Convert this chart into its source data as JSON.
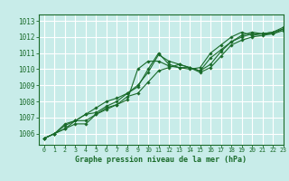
{
  "title": "Graphe pression niveau de la mer (hPa)",
  "background_color": "#c8ece9",
  "plot_bg_color": "#c8ece9",
  "grid_color": "#ffffff",
  "line_color": "#1a6b2a",
  "marker_color": "#1a6b2a",
  "tick_color": "#1a6b2a",
  "xlim": [
    -0.5,
    23
  ],
  "ylim": [
    1005.3,
    1013.4
  ],
  "xticks": [
    0,
    1,
    2,
    3,
    4,
    5,
    6,
    7,
    8,
    9,
    10,
    11,
    12,
    13,
    14,
    15,
    16,
    17,
    18,
    19,
    20,
    21,
    22,
    23
  ],
  "yticks": [
    1006,
    1007,
    1008,
    1009,
    1010,
    1011,
    1012,
    1013
  ],
  "series": [
    [
      1005.7,
      1006.0,
      1006.3,
      1006.6,
      1006.6,
      1007.2,
      1007.5,
      1007.8,
      1008.1,
      1010.0,
      1010.5,
      1010.5,
      1010.2,
      1010.1,
      1010.0,
      1010.1,
      1011.0,
      1011.5,
      1012.0,
      1012.3,
      1012.1,
      1012.2,
      1012.3,
      1012.6
    ],
    [
      1005.7,
      1006.0,
      1006.3,
      1006.8,
      1006.8,
      1007.2,
      1007.6,
      1007.8,
      1008.3,
      1008.5,
      1009.2,
      1009.9,
      1010.1,
      1010.3,
      1010.1,
      1009.9,
      1010.3,
      1011.1,
      1011.7,
      1012.1,
      1012.3,
      1012.2,
      1012.2,
      1012.5
    ],
    [
      1005.7,
      1006.0,
      1006.5,
      1006.8,
      1007.2,
      1007.3,
      1007.7,
      1008.0,
      1008.5,
      1008.9,
      1010.0,
      1011.0,
      1010.3,
      1010.1,
      1010.1,
      1009.8,
      1010.1,
      1010.8,
      1011.5,
      1011.8,
      1012.0,
      1012.1,
      1012.2,
      1012.4
    ],
    [
      1005.7,
      1006.0,
      1006.6,
      1006.8,
      1007.2,
      1007.6,
      1008.0,
      1008.2,
      1008.5,
      1009.0,
      1009.8,
      1010.9,
      1010.5,
      1010.3,
      1010.1,
      1009.9,
      1010.7,
      1011.2,
      1011.7,
      1012.0,
      1012.2,
      1012.2,
      1012.3,
      1012.5
    ]
  ]
}
